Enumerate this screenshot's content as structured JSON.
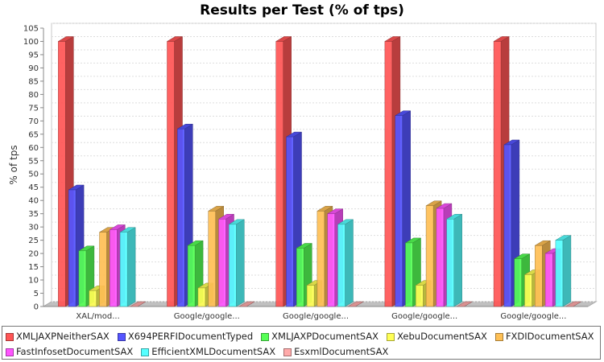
{
  "chart_data": {
    "type": "bar",
    "title": "Results per Test (% of tps)",
    "xlabel": "",
    "ylabel": "% of tps",
    "ylim": [
      0,
      105
    ],
    "ytick_step": 5,
    "grid": true,
    "legend_position": "bottom",
    "categories": [
      "XAL/mod...",
      "Google/google...",
      "Google/google...",
      "Google/google...",
      "Google/google..."
    ],
    "series": [
      {
        "name": "XMLJAXPNeitherSAX",
        "color": "#ff5555",
        "values": [
          100,
          100,
          100,
          100,
          100
        ]
      },
      {
        "name": "X694PERFIDocumentTyped",
        "color": "#5555ff",
        "values": [
          44,
          67,
          64,
          72,
          61
        ]
      },
      {
        "name": "XMLJAXPDocumentSAX",
        "color": "#55ff55",
        "values": [
          21,
          23,
          22,
          24,
          18
        ]
      },
      {
        "name": "XebuDocumentSAX",
        "color": "#ffff55",
        "values": [
          6,
          7,
          8,
          8,
          12
        ]
      },
      {
        "name": "FXDIDocumentSAX",
        "color": "#ffc055",
        "values": [
          28,
          36,
          36,
          38,
          23
        ]
      },
      {
        "name": "FastInfosetDocumentSAX",
        "color": "#ff55ff",
        "values": [
          29,
          33,
          35,
          37,
          20
        ]
      },
      {
        "name": "EfficientXMLDocumentSAX",
        "color": "#55ffff",
        "values": [
          28,
          31,
          31,
          33,
          25
        ]
      },
      {
        "name": "EsxmlDocumentSAX",
        "color": "#ffaaaa",
        "values": [
          0,
          0,
          0,
          0,
          0
        ]
      }
    ]
  }
}
